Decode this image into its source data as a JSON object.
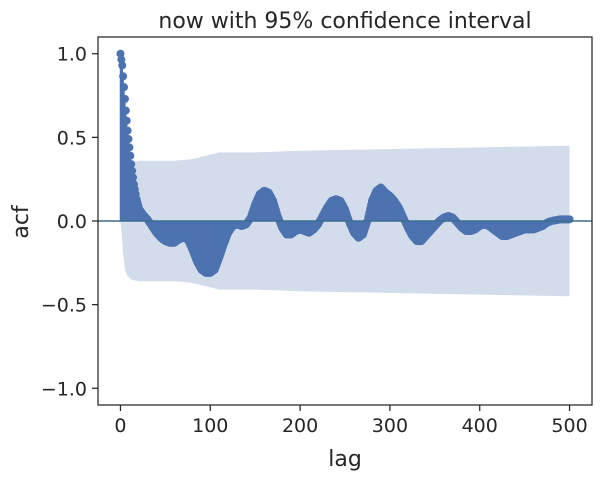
{
  "chart_data": {
    "type": "scatter",
    "title": "now with 95% confidence interval",
    "xlabel": "lag",
    "ylabel": "acf",
    "xlim": [
      -25,
      525
    ],
    "ylim": [
      -1.1,
      1.1
    ],
    "xticks": [
      0,
      100,
      200,
      300,
      400,
      500
    ],
    "xtick_labels": [
      "0",
      "100",
      "200",
      "300",
      "400",
      "500"
    ],
    "yticks": [
      1.0,
      0.5,
      0.0,
      -0.5,
      -1.0
    ],
    "ytick_labels": [
      "1.0",
      "0.5",
      "0.0",
      "−0.5",
      "−1.0"
    ],
    "grid": false,
    "zero_line": 0.0,
    "colors": {
      "stem": "#4c72b0",
      "marker": "#4c72b0",
      "band": "#4c72b0",
      "zero_line": "#3b6e8f",
      "axes": "#262626"
    },
    "acf_knots": [
      [
        0,
        1.0
      ],
      [
        2,
        0.93
      ],
      [
        4,
        0.8
      ],
      [
        6,
        0.66
      ],
      [
        8,
        0.54
      ],
      [
        10,
        0.44
      ],
      [
        12,
        0.34
      ],
      [
        15,
        0.22
      ],
      [
        18,
        0.13
      ],
      [
        21,
        0.07
      ],
      [
        25,
        0.04
      ],
      [
        30,
        0.01
      ],
      [
        35,
        -0.03
      ],
      [
        40,
        -0.07
      ],
      [
        45,
        -0.1
      ],
      [
        50,
        -0.12
      ],
      [
        55,
        -0.13
      ],
      [
        60,
        -0.13
      ],
      [
        65,
        -0.11
      ],
      [
        70,
        -0.1
      ],
      [
        75,
        -0.11
      ],
      [
        80,
        -0.17
      ],
      [
        85,
        -0.24
      ],
      [
        90,
        -0.29
      ],
      [
        95,
        -0.31
      ],
      [
        100,
        -0.31
      ],
      [
        105,
        -0.29
      ],
      [
        110,
        -0.22
      ],
      [
        115,
        -0.14
      ],
      [
        120,
        -0.07
      ],
      [
        125,
        -0.03
      ],
      [
        130,
        -0.02
      ],
      [
        135,
        -0.03
      ],
      [
        140,
        -0.02
      ],
      [
        145,
        0.02
      ],
      [
        150,
        0.1
      ],
      [
        155,
        0.16
      ],
      [
        160,
        0.18
      ],
      [
        165,
        0.17
      ],
      [
        170,
        0.12
      ],
      [
        175,
        0.03
      ],
      [
        180,
        -0.04
      ],
      [
        185,
        -0.08
      ],
      [
        190,
        -0.08
      ],
      [
        195,
        -0.06
      ],
      [
        200,
        -0.05
      ],
      [
        205,
        -0.06
      ],
      [
        210,
        -0.07
      ],
      [
        215,
        -0.05
      ],
      [
        220,
        -0.02
      ],
      [
        225,
        0.03
      ],
      [
        230,
        0.08
      ],
      [
        235,
        0.12
      ],
      [
        240,
        0.13
      ],
      [
        245,
        0.12
      ],
      [
        250,
        0.07
      ],
      [
        255,
        -0.01
      ],
      [
        260,
        -0.07
      ],
      [
        265,
        -0.1
      ],
      [
        270,
        -0.08
      ],
      [
        275,
        0.0
      ],
      [
        280,
        0.12
      ],
      [
        285,
        0.18
      ],
      [
        290,
        0.2
      ],
      [
        295,
        0.17
      ],
      [
        300,
        0.15
      ],
      [
        305,
        0.12
      ],
      [
        310,
        0.08
      ],
      [
        315,
        0.02
      ],
      [
        320,
        -0.04
      ],
      [
        325,
        -0.09
      ],
      [
        330,
        -0.12
      ],
      [
        335,
        -0.12
      ],
      [
        340,
        -0.09
      ],
      [
        345,
        -0.06
      ],
      [
        350,
        -0.03
      ],
      [
        355,
        0.0
      ],
      [
        360,
        0.02
      ],
      [
        365,
        0.03
      ],
      [
        370,
        0.02
      ],
      [
        375,
        -0.01
      ],
      [
        380,
        -0.04
      ],
      [
        385,
        -0.06
      ],
      [
        390,
        -0.06
      ],
      [
        395,
        -0.05
      ],
      [
        400,
        -0.03
      ],
      [
        405,
        -0.02
      ],
      [
        410,
        -0.03
      ],
      [
        415,
        -0.05
      ],
      [
        420,
        -0.07
      ],
      [
        425,
        -0.09
      ],
      [
        430,
        -0.09
      ],
      [
        435,
        -0.08
      ],
      [
        440,
        -0.07
      ],
      [
        445,
        -0.06
      ],
      [
        450,
        -0.05
      ],
      [
        455,
        -0.05
      ],
      [
        460,
        -0.05
      ],
      [
        465,
        -0.04
      ],
      [
        470,
        -0.03
      ],
      [
        475,
        -0.01
      ],
      [
        480,
        0.0
      ],
      [
        490,
        0.01
      ],
      [
        500,
        0.01
      ]
    ],
    "confidence_band_upper": [
      [
        0,
        0.0
      ],
      [
        1,
        0.05
      ],
      [
        3,
        0.2
      ],
      [
        5,
        0.29
      ],
      [
        8,
        0.33
      ],
      [
        12,
        0.35
      ],
      [
        20,
        0.36
      ],
      [
        60,
        0.36
      ],
      [
        80,
        0.37
      ],
      [
        95,
        0.39
      ],
      [
        110,
        0.41
      ],
      [
        150,
        0.41
      ],
      [
        200,
        0.42
      ],
      [
        300,
        0.43
      ],
      [
        400,
        0.44
      ],
      [
        500,
        0.45
      ]
    ],
    "confidence_band_lower": [
      [
        0,
        0.0
      ],
      [
        1,
        -0.05
      ],
      [
        3,
        -0.2
      ],
      [
        5,
        -0.29
      ],
      [
        8,
        -0.33
      ],
      [
        12,
        -0.35
      ],
      [
        20,
        -0.36
      ],
      [
        60,
        -0.36
      ],
      [
        80,
        -0.37
      ],
      [
        95,
        -0.39
      ],
      [
        110,
        -0.41
      ],
      [
        150,
        -0.41
      ],
      [
        200,
        -0.42
      ],
      [
        300,
        -0.43
      ],
      [
        400,
        -0.44
      ],
      [
        500,
        -0.45
      ]
    ]
  }
}
